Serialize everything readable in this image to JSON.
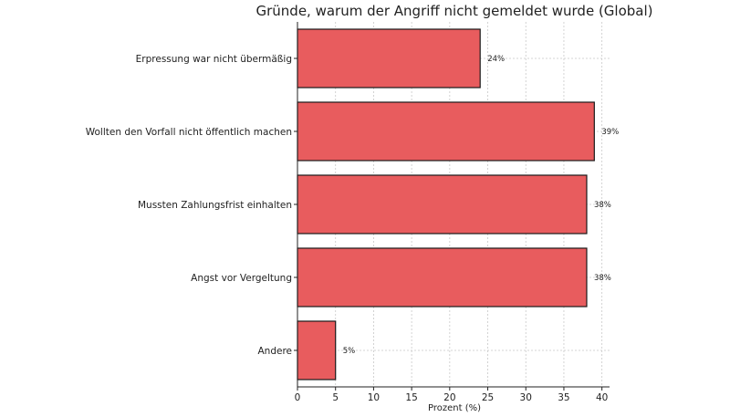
{
  "chart_data": {
    "type": "bar",
    "orientation": "horizontal",
    "title": "Gründe, warum der Angriff nicht gemeldet wurde (Global)",
    "xlabel": "Prozent (%)",
    "ylabel": "",
    "categories": [
      "Erpressung war nicht übermäßig",
      "Wollten den Vorfall nicht öffentlich machen",
      "Mussten Zahlungsfrist einhalten",
      "Angst vor Vergeltung",
      "Andere"
    ],
    "values": [
      24,
      39,
      38,
      38,
      5
    ],
    "data_labels": [
      "24%",
      "39%",
      "38%",
      "38%",
      "5%"
    ],
    "x_ticks": [
      0,
      5,
      10,
      15,
      20,
      25,
      30,
      35,
      40
    ],
    "xlim": [
      0,
      41
    ],
    "grid": true,
    "bar_color": "#e85c5e",
    "edge_color": "#1a1a1a"
  }
}
